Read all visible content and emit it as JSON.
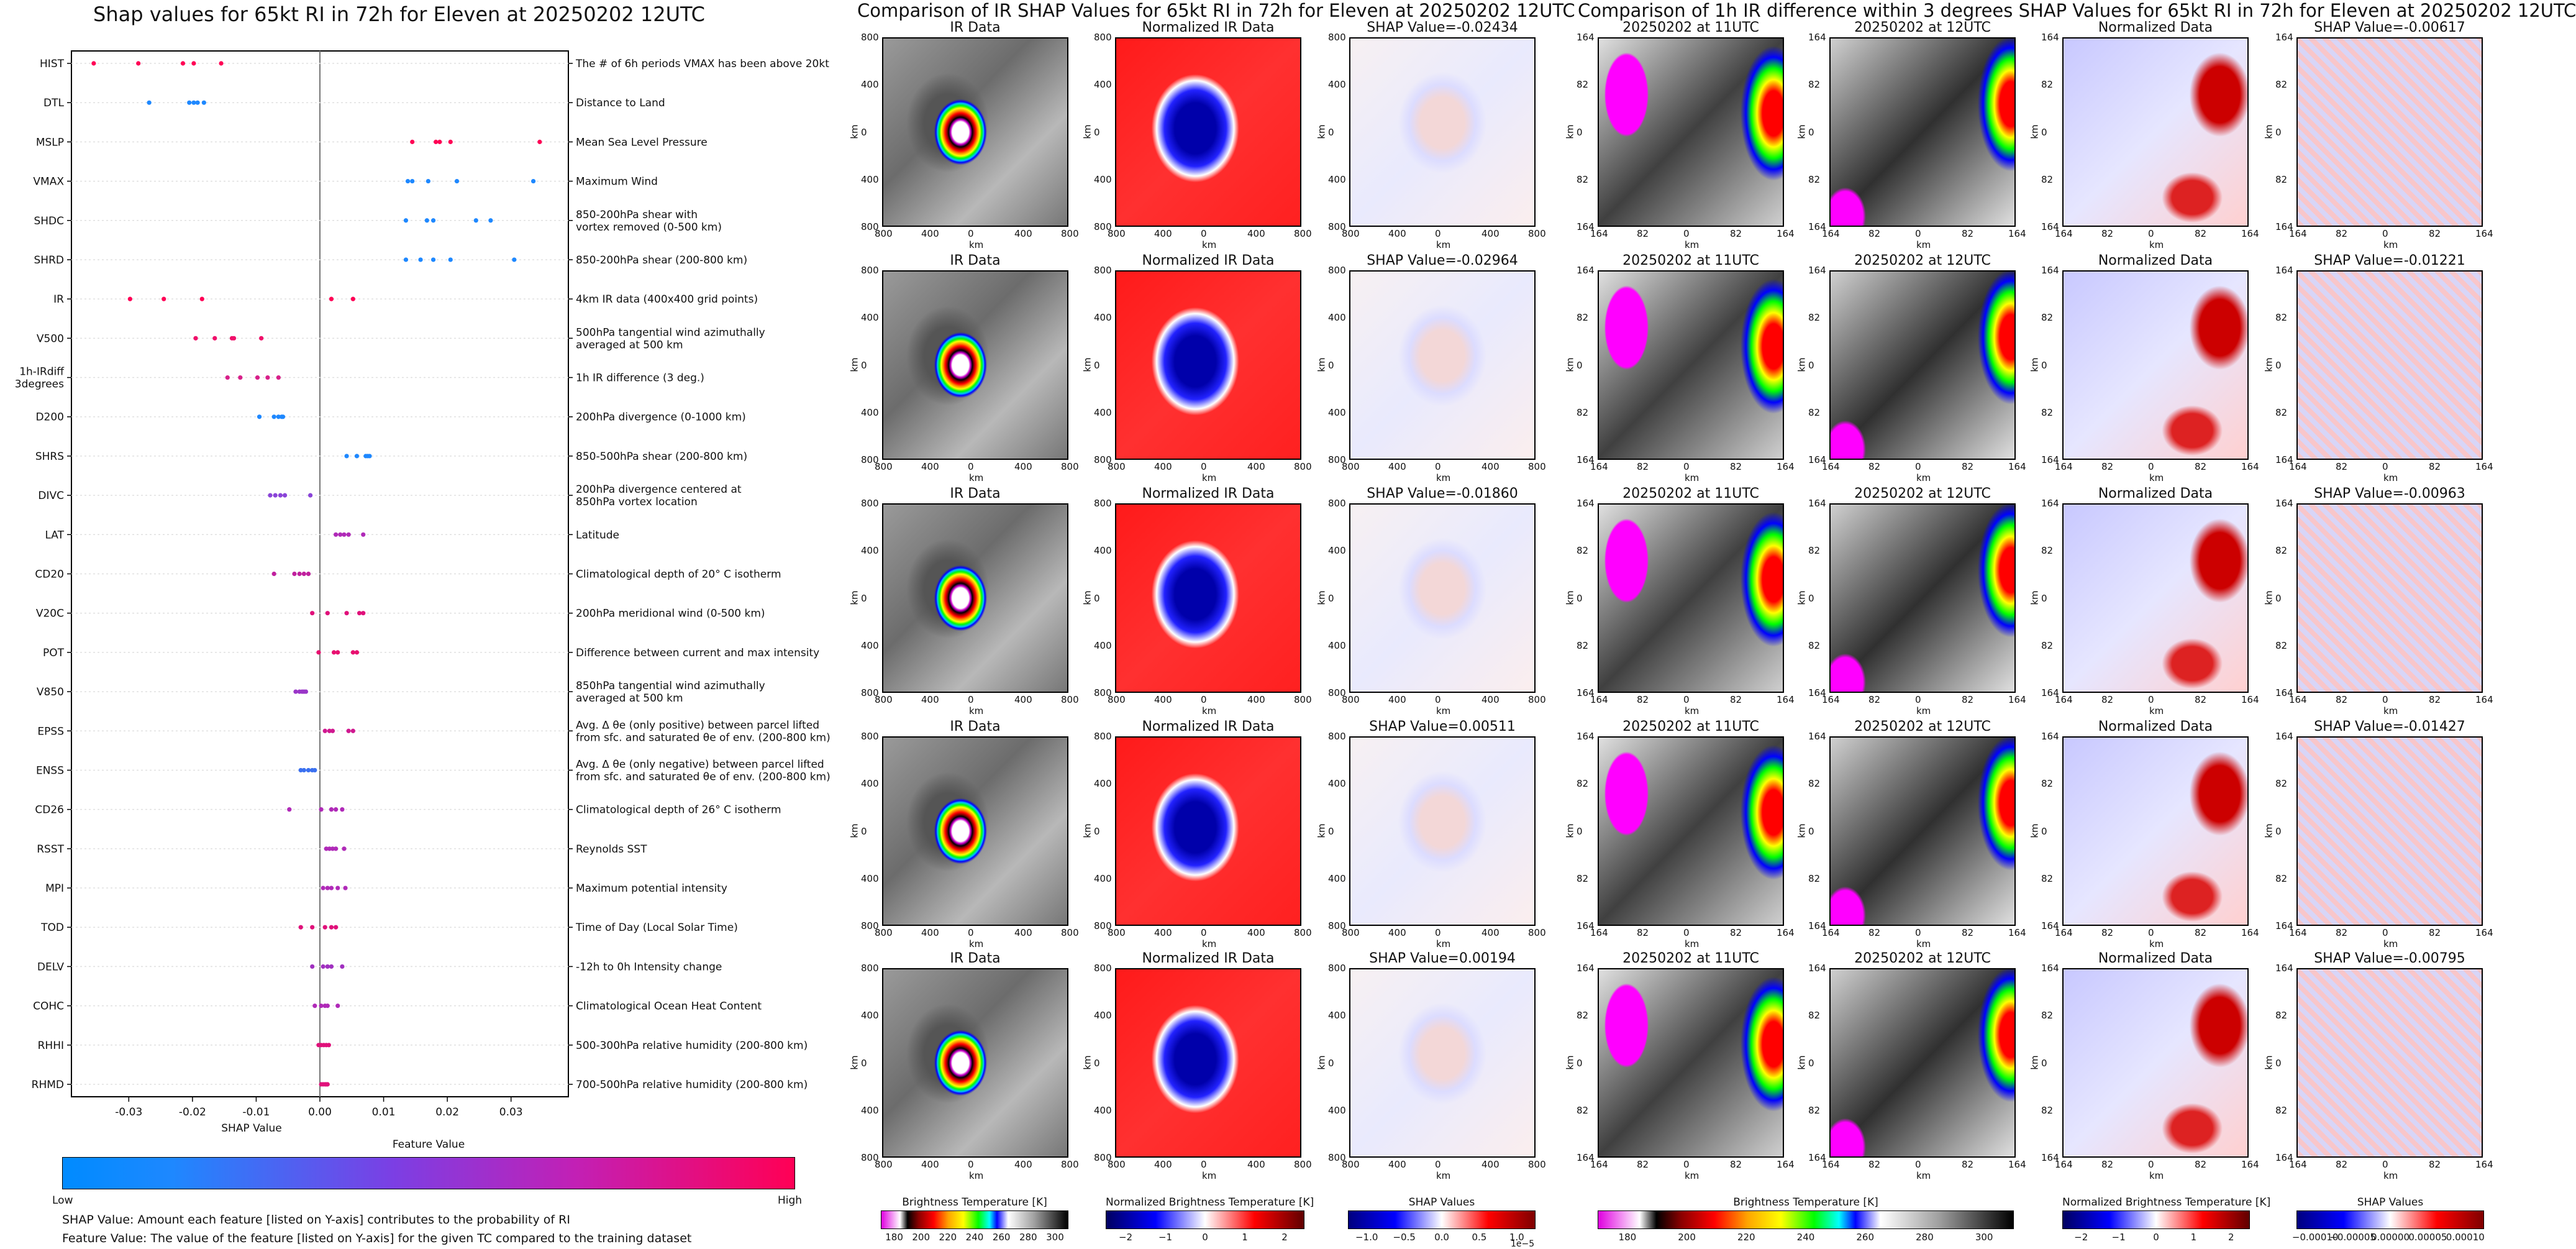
{
  "left": {
    "title": "Shap values for 65kt RI in 72h for Eleven at 20250202 12UTC",
    "xlabel": "SHAP Value",
    "colorbar_title": "Feature Value",
    "colorbar_low": "Low",
    "colorbar_high": "High",
    "note1": "SHAP Value: Amount each feature [listed on Y-axis] contributes to the probability of RI",
    "note2": "Feature Value: The value of the feature [listed on Y-axis] for the given TC compared to the training dataset"
  },
  "chart_data": [
    {
      "type": "scatter",
      "title": "Shap values for 65kt RI in 72h for Eleven at 20250202 12UTC",
      "xlabel": "SHAP Value",
      "ylabel": "",
      "xlim": [
        -0.039,
        0.039
      ],
      "xticks": [
        "-0.03",
        "-0.02",
        "-0.01",
        "0.00",
        "0.01",
        "0.02",
        "0.03"
      ],
      "xtick_values": [
        -0.03,
        -0.02,
        -0.01,
        0.0,
        0.01,
        0.02,
        0.03
      ],
      "vline_at": 0.0,
      "grid": false,
      "color_encoding": "Feature Value (Low=blue, High=magenta-red)",
      "features": [
        {
          "name": "HIST",
          "desc": "The # of 6h periods VMAX has been above 20kt",
          "points": [
            -0.0355,
            -0.0285,
            -0.0215,
            -0.0198,
            -0.0155
          ],
          "colors": [
            "#ff0055",
            "#ff0055",
            "#ff0055",
            "#ff0055",
            "#ff0055"
          ]
        },
        {
          "name": "DTL",
          "desc": "Distance to Land",
          "points": [
            -0.0268,
            -0.0205,
            -0.0198,
            -0.0192,
            -0.0182
          ],
          "colors": [
            "#1e88ff",
            "#1e88ff",
            "#1e88ff",
            "#1e88ff",
            "#1e88ff"
          ]
        },
        {
          "name": "MSLP",
          "desc": "Mean Sea Level Pressure",
          "points": [
            0.0145,
            0.0182,
            0.0188,
            0.0205,
            0.0345
          ],
          "colors": [
            "#ff0055",
            "#ff0055",
            "#ff0055",
            "#ff0055",
            "#ff0055"
          ]
        },
        {
          "name": "VMAX",
          "desc": "Maximum Wind",
          "points": [
            0.0138,
            0.0145,
            0.017,
            0.0215,
            0.0335
          ],
          "colors": [
            "#1e88ff",
            "#1e88ff",
            "#1e88ff",
            "#1e88ff",
            "#1e88ff"
          ]
        },
        {
          "name": "SHDC",
          "desc": "850-200hPa shear with\nvortex removed (0-500 km)",
          "points": [
            0.0135,
            0.0168,
            0.0178,
            0.0245,
            0.0268
          ],
          "colors": [
            "#1e88ff",
            "#1e88ff",
            "#1e88ff",
            "#1e88ff",
            "#1e88ff"
          ]
        },
        {
          "name": "SHRD",
          "desc": "850-200hPa shear (200-800 km)",
          "points": [
            0.0135,
            0.0158,
            0.0178,
            0.0205,
            0.0305
          ],
          "colors": [
            "#1e88ff",
            "#1e88ff",
            "#1e88ff",
            "#1e88ff",
            "#1e88ff"
          ]
        },
        {
          "name": "IR",
          "desc": "4km IR data (400x400 grid points)",
          "points": [
            -0.0298,
            -0.0245,
            -0.0185,
            0.0018,
            0.0052
          ],
          "colors": [
            "#ff0055",
            "#ff0055",
            "#ff0055",
            "#ff0055",
            "#ff0055"
          ]
        },
        {
          "name": "V500",
          "desc": "500hPa tangential wind azimuthally\naveraged at 500 km",
          "points": [
            -0.0195,
            -0.0165,
            -0.0138,
            -0.0135,
            -0.0092
          ],
          "colors": [
            "#f0106a",
            "#f0106a",
            "#f0106a",
            "#f0106a",
            "#f0106a"
          ]
        },
        {
          "name": "1h-IRdiff\n3degrees",
          "desc": "1h IR difference (3 deg.)",
          "points": [
            -0.0145,
            -0.0125,
            -0.0098,
            -0.0082,
            -0.0065
          ],
          "colors": [
            "#d8208a",
            "#d8208a",
            "#d8208a",
            "#d8208a",
            "#d8208a"
          ]
        },
        {
          "name": "D200",
          "desc": "200hPa divergence (0-1000 km)",
          "points": [
            -0.0095,
            -0.0072,
            -0.0065,
            -0.006,
            -0.0058
          ],
          "colors": [
            "#1e88ff",
            "#1e88ff",
            "#1e88ff",
            "#1e88ff",
            "#1e88ff"
          ]
        },
        {
          "name": "SHRS",
          "desc": "850-500hPa shear (200-800 km)",
          "points": [
            0.0042,
            0.0058,
            0.0072,
            0.0075,
            0.0078
          ],
          "colors": [
            "#1e88ff",
            "#1e88ff",
            "#1e88ff",
            "#1e88ff",
            "#1e88ff"
          ]
        },
        {
          "name": "DIVC",
          "desc": "200hPa divergence centered at\n850hPa vortex location",
          "points": [
            -0.0078,
            -0.007,
            -0.0062,
            -0.0055,
            -0.0015
          ],
          "colors": [
            "#8a44d8",
            "#8a44d8",
            "#8a44d8",
            "#8a44d8",
            "#8a44d8"
          ]
        },
        {
          "name": "LAT",
          "desc": "Latitude",
          "points": [
            0.0025,
            0.0032,
            0.0038,
            0.0045,
            0.0068
          ],
          "colors": [
            "#b02ab8",
            "#b02ab8",
            "#b02ab8",
            "#b02ab8",
            "#b02ab8"
          ]
        },
        {
          "name": "CD20",
          "desc": "Climatological depth of 20° C isotherm",
          "points": [
            -0.0072,
            -0.004,
            -0.0032,
            -0.0025,
            -0.0018
          ],
          "colors": [
            "#c0209e",
            "#c0209e",
            "#c0209e",
            "#c0209e",
            "#c0209e"
          ]
        },
        {
          "name": "V20C",
          "desc": "200hPa meridional wind (0-500 km)",
          "points": [
            -0.0012,
            0.0012,
            0.0042,
            0.0062,
            0.0068
          ],
          "colors": [
            "#e0107a",
            "#e0107a",
            "#e0107a",
            "#e0107a",
            "#e0107a"
          ]
        },
        {
          "name": "POT",
          "desc": "Difference between current and max intensity",
          "points": [
            -0.0002,
            0.0022,
            0.0028,
            0.0052,
            0.0058
          ],
          "colors": [
            "#e81070",
            "#e81070",
            "#e81070",
            "#e81070",
            "#e81070"
          ]
        },
        {
          "name": "V850",
          "desc": "850hPa tangential wind azimuthally\naveraged at 500 km",
          "points": [
            -0.0038,
            -0.0032,
            -0.0028,
            -0.0025,
            -0.0022
          ],
          "colors": [
            "#9a36c8",
            "#9a36c8",
            "#9a36c8",
            "#9a36c8",
            "#9a36c8"
          ]
        },
        {
          "name": "EPSS",
          "desc": "Avg. Δ θe (only positive) between parcel lifted\nfrom sfc. and saturated θe of env. (200-800 km)",
          "points": [
            0.0008,
            0.0015,
            0.002,
            0.0045,
            0.0052
          ],
          "colors": [
            "#d01890",
            "#d01890",
            "#d01890",
            "#d01890",
            "#d01890"
          ]
        },
        {
          "name": "ENSS",
          "desc": "Avg. Δ θe (only negative) between parcel lifted\nfrom sfc. and saturated θe of env. (200-800 km)",
          "points": [
            -0.003,
            -0.0025,
            -0.0018,
            -0.0012,
            -0.0008
          ],
          "colors": [
            "#3a70f0",
            "#3a70f0",
            "#3a70f0",
            "#3a70f0",
            "#3a70f0"
          ]
        },
        {
          "name": "CD26",
          "desc": "Climatological depth of 26° C isotherm",
          "points": [
            -0.0048,
            0.0002,
            0.0018,
            0.0025,
            0.0035
          ],
          "colors": [
            "#b02ab8",
            "#b02ab8",
            "#b02ab8",
            "#b02ab8",
            "#b02ab8"
          ]
        },
        {
          "name": "RSST",
          "desc": "Reynolds SST",
          "points": [
            0.001,
            0.0015,
            0.002,
            0.0025,
            0.0038
          ],
          "colors": [
            "#b02ab8",
            "#b02ab8",
            "#b02ab8",
            "#b02ab8",
            "#b02ab8"
          ]
        },
        {
          "name": "MPI",
          "desc": "Maximum potential intensity",
          "points": [
            0.0005,
            0.0012,
            0.0018,
            0.0028,
            0.004
          ],
          "colors": [
            "#b02ab8",
            "#b02ab8",
            "#b02ab8",
            "#b02ab8",
            "#b02ab8"
          ]
        },
        {
          "name": "TOD",
          "desc": "Time of Day (Local Solar Time)",
          "points": [
            -0.003,
            -0.0012,
            0.0008,
            0.0018,
            0.0025
          ],
          "colors": [
            "#e0107a",
            "#e0107a",
            "#e0107a",
            "#e0107a",
            "#e0107a"
          ]
        },
        {
          "name": "DELV",
          "desc": "-12h to 0h Intensity change",
          "points": [
            -0.0012,
            0.0005,
            0.0012,
            0.0018,
            0.0035
          ],
          "colors": [
            "#a030c0",
            "#a030c0",
            "#a030c0",
            "#a030c0",
            "#a030c0"
          ]
        },
        {
          "name": "COHC",
          "desc": "Climatological Ocean Heat Content",
          "points": [
            -0.0008,
            0.0002,
            0.0008,
            0.0012,
            0.0028
          ],
          "colors": [
            "#b02ab8",
            "#b02ab8",
            "#b02ab8",
            "#b02ab8",
            "#b02ab8"
          ]
        },
        {
          "name": "RHHI",
          "desc": "500-300hPa relative humidity (200-800 km)",
          "points": [
            -0.0002,
            0.0002,
            0.0006,
            0.001,
            0.0014
          ],
          "colors": [
            "#e0107a",
            "#e0107a",
            "#e0107a",
            "#e0107a",
            "#e0107a"
          ]
        },
        {
          "name": "RHMD",
          "desc": "700-500hPa relative humidity (200-800 km)",
          "points": [
            0.0002,
            0.0005,
            0.0008,
            0.001,
            0.0012
          ],
          "colors": [
            "#e0107a",
            "#e0107a",
            "#e0107a",
            "#e0107a",
            "#e0107a"
          ]
        }
      ]
    }
  ],
  "middle": {
    "title": "Comparison of IR SHAP Values for 65kt RI in 72h for Eleven at 20250202 12UTC",
    "col_titles": [
      "IR Data",
      "Normalized IR Data"
    ],
    "shap_titles": [
      "SHAP Value=-0.02434",
      "SHAP Value=-0.02964",
      "SHAP Value=-0.01860",
      "SHAP Value=0.00511",
      "SHAP Value=0.00194"
    ],
    "axis_label": "km",
    "ticks": [
      "800",
      "400",
      "0",
      "400",
      "800"
    ],
    "cbars": [
      {
        "title": "Brightness Temperature [K]",
        "ticks": [
          "180",
          "200",
          "220",
          "240",
          "260",
          "280",
          "300"
        ]
      },
      {
        "title": "Normalized Brightness Temperature [K]",
        "ticks": [
          "−2",
          "−1",
          "0",
          "1",
          "2"
        ]
      },
      {
        "title": "SHAP Values",
        "ticks": [
          "−1.0",
          "−0.5",
          "0.0",
          "0.5",
          "1.0"
        ],
        "multiplier": "1e−5"
      }
    ]
  },
  "right": {
    "title": "Comparison of 1h IR difference within 3 degrees SHAP Values for 65kt RI in 72h for Eleven at 20250202 12UTC",
    "col_titles": [
      "20250202 at 11UTC",
      "20250202 at 12UTC",
      "Normalized Data"
    ],
    "shap_titles": [
      "SHAP Value=-0.00617",
      "SHAP Value=-0.01221",
      "SHAP Value=-0.00963",
      "SHAP Value=-0.01427",
      "SHAP Value=-0.00795"
    ],
    "axis_label": "km",
    "ticks": [
      "164",
      "82",
      "0",
      "82",
      "164"
    ],
    "cbars": [
      {
        "title": "Brightness Temperature [K]",
        "ticks": [
          "180",
          "200",
          "220",
          "240",
          "260",
          "280",
          "300"
        ]
      },
      {
        "title": "Normalized Brightness Temperature [K]",
        "ticks": [
          "−2",
          "−1",
          "0",
          "1",
          "2"
        ]
      },
      {
        "title": "SHAP Values",
        "ticks": [
          "−0.00010",
          "−0.00005",
          "0.00000",
          "0.00005",
          "0.00010"
        ]
      }
    ]
  }
}
